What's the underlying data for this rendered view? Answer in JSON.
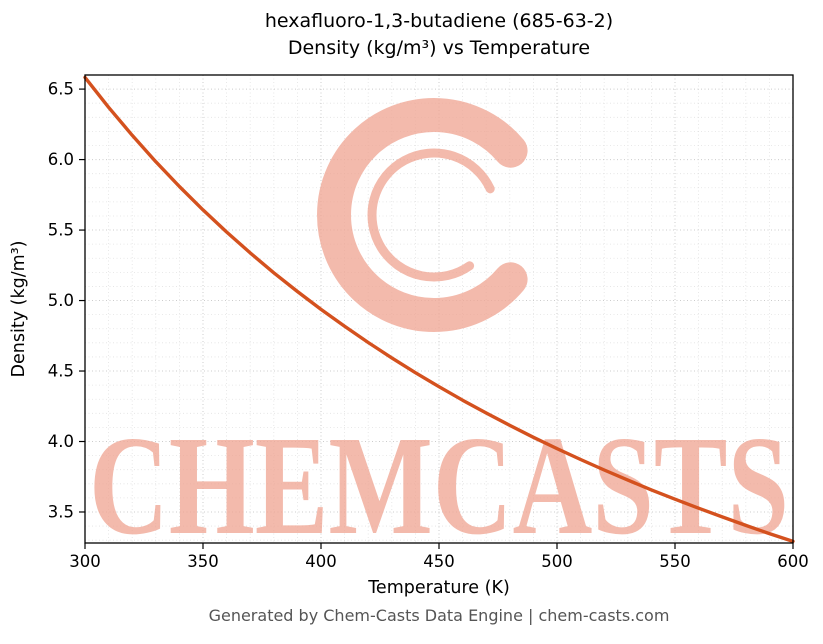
{
  "title": {
    "line1": "hexafluoro-1,3-butadiene (685-63-2)",
    "line2": "Density (kg/m³) vs Temperature"
  },
  "footer": "Generated by Chem-Casts Data Engine | chem-casts.com",
  "watermark": {
    "text": "CHEMCASTS",
    "logo": "c-swirl-logo",
    "color": "#f0a795"
  },
  "chart_data": {
    "type": "line",
    "title": "hexafluoro-1,3-butadiene (685-63-2) Density (kg/m³) vs Temperature",
    "xlabel": "Temperature (K)",
    "ylabel": "Density (kg/m³)",
    "xlim": [
      300,
      600
    ],
    "ylim": [
      3.28,
      6.6
    ],
    "x_ticks": [
      300,
      350,
      400,
      450,
      500,
      550,
      600
    ],
    "y_tick_labels": [
      "3.5",
      "4.0",
      "4.5",
      "5.0",
      "5.5",
      "6.0",
      "6.5"
    ],
    "minor_x_step": 10,
    "minor_y_step": 0.1,
    "grid": true,
    "legend": "none",
    "line_color": "#d4511e",
    "series": [
      {
        "name": "density",
        "x": [
          300,
          310,
          320,
          330,
          340,
          350,
          360,
          370,
          380,
          390,
          400,
          410,
          420,
          430,
          440,
          450,
          460,
          470,
          480,
          490,
          500,
          510,
          520,
          530,
          540,
          550,
          560,
          570,
          580,
          590,
          600
        ],
        "y": [
          6.583,
          6.371,
          6.172,
          5.985,
          5.809,
          5.643,
          5.486,
          5.338,
          5.197,
          5.064,
          4.937,
          4.817,
          4.702,
          4.593,
          4.488,
          4.389,
          4.293,
          4.202,
          4.114,
          4.03,
          3.95,
          3.872,
          3.798,
          3.726,
          3.657,
          3.591,
          3.527,
          3.465,
          3.405,
          3.347,
          3.291
        ]
      }
    ]
  }
}
